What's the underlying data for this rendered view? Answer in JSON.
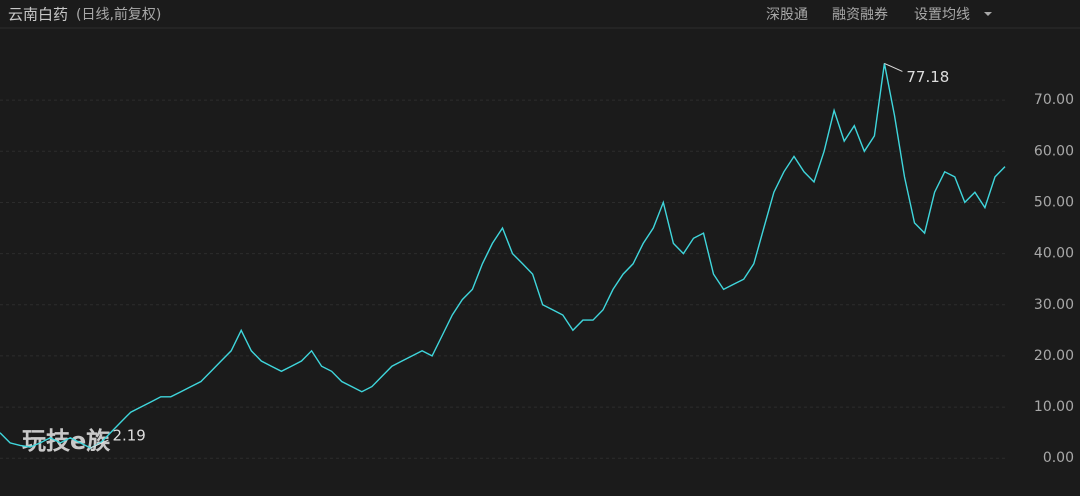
{
  "chart_data": {
    "type": "line",
    "title": "云南白药",
    "subtitle": "(日线,前复权)",
    "toolbar": [
      "深股通",
      "融资融券",
      "设置均线"
    ],
    "watermark": "玩技e族",
    "series": [
      {
        "name": "云南白药",
        "color": "#3fd6dc",
        "values": [
          5,
          3,
          2.5,
          2.19,
          3,
          4,
          3,
          4,
          3,
          2,
          3,
          5,
          7,
          9,
          10,
          11,
          12,
          12,
          13,
          14,
          15,
          17,
          19,
          21,
          25,
          21,
          19,
          18,
          17,
          18,
          19,
          21,
          18,
          17,
          15,
          14,
          13,
          14,
          16,
          18,
          19,
          20,
          21,
          20,
          24,
          28,
          31,
          33,
          38,
          42,
          45,
          40,
          38,
          36,
          30,
          29,
          28,
          25,
          27,
          27,
          29,
          33,
          36,
          38,
          42,
          45,
          50,
          42,
          40,
          43,
          44,
          36,
          33,
          34,
          35,
          38,
          45,
          52,
          56,
          59,
          56,
          54,
          60,
          68,
          62,
          65,
          60,
          63,
          77.18,
          67,
          55,
          46,
          44,
          52,
          56,
          55,
          50,
          52,
          49,
          55,
          57
        ]
      }
    ],
    "value_labels": [
      "77.18",
      "2.19"
    ],
    "ylim": [
      -6.6,
      79.8
    ],
    "yticks": [
      {
        "value": 0,
        "label": "0.00"
      },
      {
        "value": 10,
        "label": "10.00"
      },
      {
        "value": 20,
        "label": "20.00"
      },
      {
        "value": 30,
        "label": "30.00"
      },
      {
        "value": 40,
        "label": "40.00"
      },
      {
        "value": 50,
        "label": "50.00"
      },
      {
        "value": 60,
        "label": "60.00"
      },
      {
        "value": 70,
        "label": "70.00"
      }
    ],
    "grid": true
  }
}
